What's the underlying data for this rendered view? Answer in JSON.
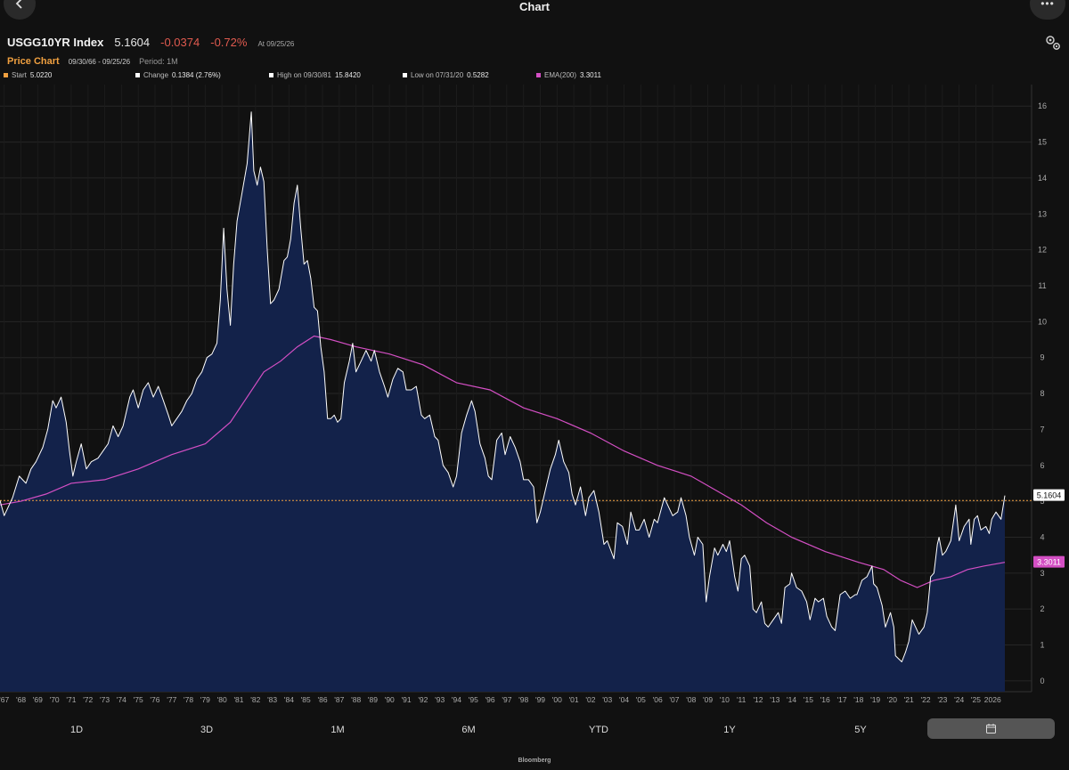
{
  "header": {
    "title": "Chart",
    "ticker": "USGG10YR Index",
    "price": "5.1604",
    "change": "-0.0374",
    "change_pct": "-0.72%",
    "as_of": "At 09/25/26"
  },
  "subheader": {
    "label": "Price Chart",
    "range": "09/30/66 - 09/25/26",
    "period": "Period: 1M"
  },
  "legend": {
    "start_label": "Start",
    "start_value": "5.0220",
    "change_label": "Change",
    "change_value": "0.1384 (2.76%)",
    "high_label": "High on 09/30/81",
    "high_value": "15.8420",
    "low_label": "Low on 07/31/20",
    "low_value": "0.5282",
    "ema_label": "EMA(200)",
    "ema_value": "3.3011"
  },
  "periods": [
    "1D",
    "3D",
    "1M",
    "6M",
    "YTD",
    "1Y",
    "5Y"
  ],
  "footer": "Bloomberg",
  "colors": {
    "price_line": "#ffffff",
    "area_fill": "#13224a",
    "ema": "#d44fc4",
    "start_line": "#f0a040",
    "negative": "#e05a4f"
  },
  "chart_data": {
    "type": "area",
    "ylim": [
      -0.3,
      16.6
    ],
    "y_ticks": [
      0,
      1,
      2,
      3,
      4,
      5,
      6,
      7,
      8,
      9,
      10,
      11,
      12,
      13,
      14,
      15,
      16
    ],
    "x_ticks": [
      "'67",
      "'68",
      "'69",
      "'70",
      "'71",
      "'72",
      "'73",
      "'74",
      "'75",
      "'76",
      "'77",
      "'78",
      "'79",
      "'80",
      "'81",
      "'82",
      "'83",
      "'84",
      "'85",
      "'86",
      "'87",
      "'88",
      "'89",
      "'90",
      "'91",
      "'92",
      "'93",
      "'94",
      "'95",
      "'96",
      "'97",
      "'98",
      "'99",
      "'00",
      "'01",
      "'02",
      "'03",
      "'04",
      "'05",
      "'06",
      "'07",
      "'08",
      "'09",
      "'10",
      "'11",
      "'12",
      "'13",
      "'14",
      "'15",
      "'16",
      "'17",
      "'18",
      "'19",
      "'20",
      "'21",
      "'22",
      "'23",
      "'24",
      "'25",
      "2026"
    ],
    "series": [
      {
        "name": "USGG10YR Index",
        "points": [
          [
            1966.75,
            5.02
          ],
          [
            1967.0,
            4.6
          ],
          [
            1967.5,
            5.1
          ],
          [
            1967.9,
            5.7
          ],
          [
            1968.3,
            5.5
          ],
          [
            1968.6,
            5.9
          ],
          [
            1968.9,
            6.1
          ],
          [
            1969.3,
            6.5
          ],
          [
            1969.6,
            7.0
          ],
          [
            1969.9,
            7.8
          ],
          [
            1970.1,
            7.6
          ],
          [
            1970.4,
            7.9
          ],
          [
            1970.7,
            7.2
          ],
          [
            1970.9,
            6.4
          ],
          [
            1971.1,
            5.7
          ],
          [
            1971.3,
            6.1
          ],
          [
            1971.6,
            6.6
          ],
          [
            1971.9,
            5.9
          ],
          [
            1972.2,
            6.1
          ],
          [
            1972.6,
            6.2
          ],
          [
            1972.9,
            6.4
          ],
          [
            1973.2,
            6.6
          ],
          [
            1973.5,
            7.1
          ],
          [
            1973.8,
            6.8
          ],
          [
            1974.1,
            7.1
          ],
          [
            1974.5,
            7.9
          ],
          [
            1974.7,
            8.1
          ],
          [
            1975.0,
            7.6
          ],
          [
            1975.3,
            8.1
          ],
          [
            1975.6,
            8.3
          ],
          [
            1975.9,
            7.9
          ],
          [
            1976.2,
            8.2
          ],
          [
            1976.5,
            7.8
          ],
          [
            1976.8,
            7.4
          ],
          [
            1977.0,
            7.1
          ],
          [
            1977.3,
            7.3
          ],
          [
            1977.6,
            7.5
          ],
          [
            1977.9,
            7.8
          ],
          [
            1978.2,
            8.0
          ],
          [
            1978.5,
            8.4
          ],
          [
            1978.8,
            8.6
          ],
          [
            1979.1,
            9.0
          ],
          [
            1979.4,
            9.1
          ],
          [
            1979.7,
            9.4
          ],
          [
            1979.9,
            10.6
          ],
          [
            1980.1,
            12.6
          ],
          [
            1980.3,
            10.9
          ],
          [
            1980.5,
            9.9
          ],
          [
            1980.7,
            11.6
          ],
          [
            1980.9,
            12.8
          ],
          [
            1981.2,
            13.6
          ],
          [
            1981.5,
            14.4
          ],
          [
            1981.75,
            15.84
          ],
          [
            1981.9,
            14.2
          ],
          [
            1982.1,
            13.8
          ],
          [
            1982.3,
            14.3
          ],
          [
            1982.5,
            13.9
          ],
          [
            1982.7,
            12.0
          ],
          [
            1982.9,
            10.5
          ],
          [
            1983.1,
            10.6
          ],
          [
            1983.4,
            10.9
          ],
          [
            1983.7,
            11.7
          ],
          [
            1983.9,
            11.8
          ],
          [
            1984.1,
            12.3
          ],
          [
            1984.3,
            13.3
          ],
          [
            1984.5,
            13.8
          ],
          [
            1984.7,
            12.6
          ],
          [
            1984.9,
            11.6
          ],
          [
            1985.1,
            11.7
          ],
          [
            1985.3,
            11.2
          ],
          [
            1985.5,
            10.4
          ],
          [
            1985.7,
            10.3
          ],
          [
            1985.9,
            9.3
          ],
          [
            1986.1,
            8.6
          ],
          [
            1986.3,
            7.3
          ],
          [
            1986.5,
            7.3
          ],
          [
            1986.7,
            7.4
          ],
          [
            1986.9,
            7.2
          ],
          [
            1987.1,
            7.3
          ],
          [
            1987.3,
            8.3
          ],
          [
            1987.6,
            8.9
          ],
          [
            1987.8,
            9.4
          ],
          [
            1988.0,
            8.6
          ],
          [
            1988.3,
            8.9
          ],
          [
            1988.6,
            9.2
          ],
          [
            1988.9,
            8.9
          ],
          [
            1989.1,
            9.2
          ],
          [
            1989.4,
            8.6
          ],
          [
            1989.7,
            8.2
          ],
          [
            1989.9,
            7.9
          ],
          [
            1990.2,
            8.4
          ],
          [
            1990.5,
            8.7
          ],
          [
            1990.8,
            8.6
          ],
          [
            1991.0,
            8.1
          ],
          [
            1991.3,
            8.1
          ],
          [
            1991.6,
            8.2
          ],
          [
            1991.9,
            7.4
          ],
          [
            1992.1,
            7.3
          ],
          [
            1992.4,
            7.4
          ],
          [
            1992.7,
            6.8
          ],
          [
            1992.9,
            6.7
          ],
          [
            1993.2,
            6.0
          ],
          [
            1993.5,
            5.8
          ],
          [
            1993.8,
            5.4
          ],
          [
            1994.0,
            5.7
          ],
          [
            1994.3,
            6.9
          ],
          [
            1994.6,
            7.4
          ],
          [
            1994.9,
            7.8
          ],
          [
            1995.1,
            7.5
          ],
          [
            1995.4,
            6.6
          ],
          [
            1995.7,
            6.2
          ],
          [
            1995.9,
            5.7
          ],
          [
            1996.1,
            5.6
          ],
          [
            1996.4,
            6.7
          ],
          [
            1996.7,
            6.9
          ],
          [
            1996.9,
            6.3
          ],
          [
            1997.2,
            6.8
          ],
          [
            1997.5,
            6.5
          ],
          [
            1997.8,
            6.1
          ],
          [
            1998.0,
            5.6
          ],
          [
            1998.3,
            5.6
          ],
          [
            1998.6,
            5.4
          ],
          [
            1998.8,
            4.4
          ],
          [
            1999.0,
            4.7
          ],
          [
            1999.3,
            5.3
          ],
          [
            1999.6,
            5.9
          ],
          [
            1999.9,
            6.3
          ],
          [
            2000.1,
            6.7
          ],
          [
            2000.4,
            6.1
          ],
          [
            2000.7,
            5.8
          ],
          [
            2000.9,
            5.2
          ],
          [
            2001.1,
            4.9
          ],
          [
            2001.4,
            5.4
          ],
          [
            2001.7,
            4.6
          ],
          [
            2001.9,
            5.1
          ],
          [
            2002.2,
            5.3
          ],
          [
            2002.5,
            4.7
          ],
          [
            2002.8,
            3.8
          ],
          [
            2003.0,
            3.9
          ],
          [
            2003.4,
            3.4
          ],
          [
            2003.6,
            4.4
          ],
          [
            2003.9,
            4.3
          ],
          [
            2004.2,
            3.8
          ],
          [
            2004.4,
            4.7
          ],
          [
            2004.7,
            4.2
          ],
          [
            2004.9,
            4.2
          ],
          [
            2005.2,
            4.5
          ],
          [
            2005.5,
            4.0
          ],
          [
            2005.8,
            4.5
          ],
          [
            2006.0,
            4.4
          ],
          [
            2006.4,
            5.1
          ],
          [
            2006.7,
            4.8
          ],
          [
            2006.9,
            4.6
          ],
          [
            2007.2,
            4.7
          ],
          [
            2007.4,
            5.1
          ],
          [
            2007.7,
            4.6
          ],
          [
            2007.9,
            4.0
          ],
          [
            2008.2,
            3.5
          ],
          [
            2008.4,
            4.0
          ],
          [
            2008.7,
            3.8
          ],
          [
            2008.9,
            2.2
          ],
          [
            2009.1,
            2.9
          ],
          [
            2009.4,
            3.7
          ],
          [
            2009.6,
            3.5
          ],
          [
            2009.9,
            3.8
          ],
          [
            2010.1,
            3.6
          ],
          [
            2010.3,
            3.9
          ],
          [
            2010.6,
            2.9
          ],
          [
            2010.8,
            2.5
          ],
          [
            2011.0,
            3.4
          ],
          [
            2011.2,
            3.5
          ],
          [
            2011.5,
            3.2
          ],
          [
            2011.7,
            2.0
          ],
          [
            2011.9,
            1.9
          ],
          [
            2012.2,
            2.2
          ],
          [
            2012.4,
            1.6
          ],
          [
            2012.6,
            1.5
          ],
          [
            2012.9,
            1.7
          ],
          [
            2013.2,
            1.9
          ],
          [
            2013.4,
            1.6
          ],
          [
            2013.6,
            2.6
          ],
          [
            2013.9,
            2.7
          ],
          [
            2014.0,
            3.0
          ],
          [
            2014.3,
            2.6
          ],
          [
            2014.6,
            2.5
          ],
          [
            2014.9,
            2.2
          ],
          [
            2015.1,
            1.7
          ],
          [
            2015.4,
            2.3
          ],
          [
            2015.6,
            2.2
          ],
          [
            2015.9,
            2.3
          ],
          [
            2016.1,
            1.8
          ],
          [
            2016.4,
            1.5
          ],
          [
            2016.6,
            1.4
          ],
          [
            2016.9,
            2.4
          ],
          [
            2017.2,
            2.5
          ],
          [
            2017.5,
            2.3
          ],
          [
            2017.8,
            2.4
          ],
          [
            2017.9,
            2.4
          ],
          [
            2018.2,
            2.8
          ],
          [
            2018.5,
            2.9
          ],
          [
            2018.8,
            3.2
          ],
          [
            2018.9,
            2.7
          ],
          [
            2019.1,
            2.6
          ],
          [
            2019.4,
            2.1
          ],
          [
            2019.6,
            1.5
          ],
          [
            2019.9,
            1.9
          ],
          [
            2020.1,
            1.5
          ],
          [
            2020.2,
            0.7
          ],
          [
            2020.58,
            0.53
          ],
          [
            2020.8,
            0.8
          ],
          [
            2021.0,
            1.1
          ],
          [
            2021.2,
            1.7
          ],
          [
            2021.4,
            1.5
          ],
          [
            2021.6,
            1.3
          ],
          [
            2021.9,
            1.5
          ],
          [
            2022.1,
            1.9
          ],
          [
            2022.3,
            2.9
          ],
          [
            2022.5,
            3.0
          ],
          [
            2022.7,
            3.8
          ],
          [
            2022.8,
            4.0
          ],
          [
            2023.0,
            3.5
          ],
          [
            2023.2,
            3.6
          ],
          [
            2023.5,
            3.9
          ],
          [
            2023.8,
            4.9
          ],
          [
            2024.0,
            3.9
          ],
          [
            2024.3,
            4.3
          ],
          [
            2024.6,
            4.5
          ],
          [
            2024.7,
            3.8
          ],
          [
            2024.9,
            4.5
          ],
          [
            2025.1,
            4.6
          ],
          [
            2025.3,
            4.2
          ],
          [
            2025.6,
            4.3
          ],
          [
            2025.8,
            4.1
          ],
          [
            2025.95,
            4.5
          ],
          [
            2026.2,
            4.7
          ],
          [
            2026.5,
            4.5
          ],
          [
            2026.73,
            5.16
          ]
        ]
      },
      {
        "name": "EMA(200)",
        "points": [
          [
            1966.75,
            4.9
          ],
          [
            1968.0,
            5.0
          ],
          [
            1969.5,
            5.2
          ],
          [
            1971.0,
            5.5
          ],
          [
            1973.0,
            5.6
          ],
          [
            1975.0,
            5.9
          ],
          [
            1977.0,
            6.3
          ],
          [
            1979.0,
            6.6
          ],
          [
            1980.5,
            7.2
          ],
          [
            1981.5,
            7.9
          ],
          [
            1982.5,
            8.6
          ],
          [
            1983.5,
            8.9
          ],
          [
            1984.5,
            9.3
          ],
          [
            1985.5,
            9.6
          ],
          [
            1986.5,
            9.5
          ],
          [
            1988.0,
            9.3
          ],
          [
            1990.0,
            9.1
          ],
          [
            1992.0,
            8.8
          ],
          [
            1994.0,
            8.3
          ],
          [
            1996.0,
            8.1
          ],
          [
            1998.0,
            7.6
          ],
          [
            2000.0,
            7.3
          ],
          [
            2002.0,
            6.9
          ],
          [
            2004.0,
            6.4
          ],
          [
            2006.0,
            6.0
          ],
          [
            2008.0,
            5.7
          ],
          [
            2009.5,
            5.3
          ],
          [
            2011.0,
            4.9
          ],
          [
            2012.5,
            4.4
          ],
          [
            2014.0,
            4.0
          ],
          [
            2016.0,
            3.6
          ],
          [
            2018.0,
            3.3
          ],
          [
            2019.5,
            3.1
          ],
          [
            2020.5,
            2.8
          ],
          [
            2021.5,
            2.6
          ],
          [
            2022.5,
            2.8
          ],
          [
            2023.5,
            2.9
          ],
          [
            2024.5,
            3.1
          ],
          [
            2025.5,
            3.2
          ],
          [
            2026.73,
            3.3
          ]
        ]
      }
    ],
    "last_value": "5.1604",
    "ema_last_value": "3.3011",
    "start_level": 5.022
  }
}
